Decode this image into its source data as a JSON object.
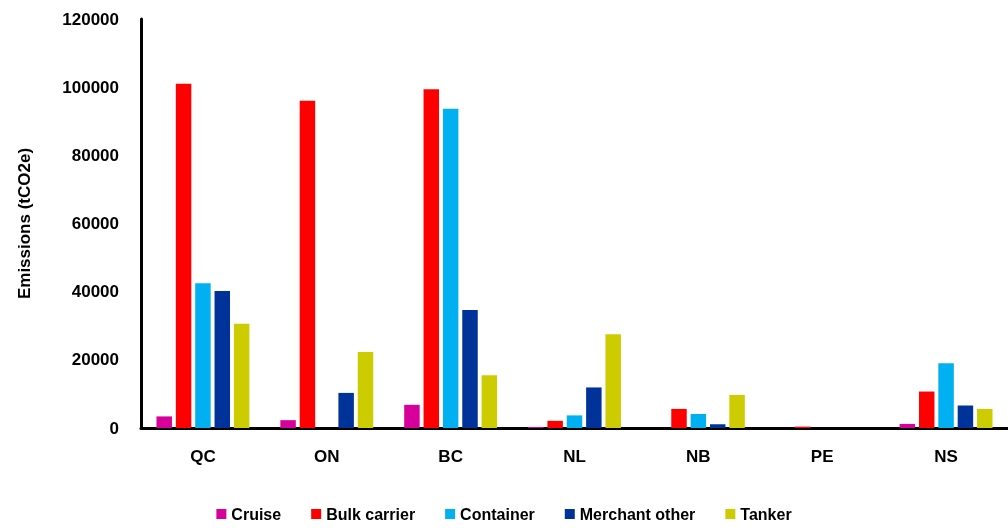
{
  "chart_data": {
    "type": "bar",
    "ylabel": "Emissions (tCO2e)",
    "categories": [
      "QC",
      "ON",
      "BC",
      "NL",
      "NB",
      "PE",
      "NS"
    ],
    "series": [
      {
        "name": "Cruise",
        "color": "#d6009a",
        "values": [
          3400,
          2300,
          6800,
          300,
          0,
          0,
          1200
        ]
      },
      {
        "name": "Bulk carrier",
        "color": "#ff0000",
        "values": [
          101000,
          96000,
          99400,
          2100,
          5600,
          400,
          10700
        ]
      },
      {
        "name": "Container",
        "color": "#00b0f0",
        "values": [
          42500,
          0,
          93700,
          3700,
          4100,
          0,
          19000
        ]
      },
      {
        "name": "Merchant other",
        "color": "#003399",
        "values": [
          40200,
          10300,
          34600,
          11900,
          1100,
          0,
          6600
        ]
      },
      {
        "name": "Tanker",
        "color": "#cccc00",
        "values": [
          30600,
          22300,
          15500,
          27500,
          9700,
          0,
          5600
        ]
      }
    ],
    "ylim": [
      0,
      120000
    ],
    "yticks": [
      0,
      20000,
      40000,
      60000,
      80000,
      100000,
      120000
    ],
    "grid": false,
    "legend": "bottom"
  }
}
